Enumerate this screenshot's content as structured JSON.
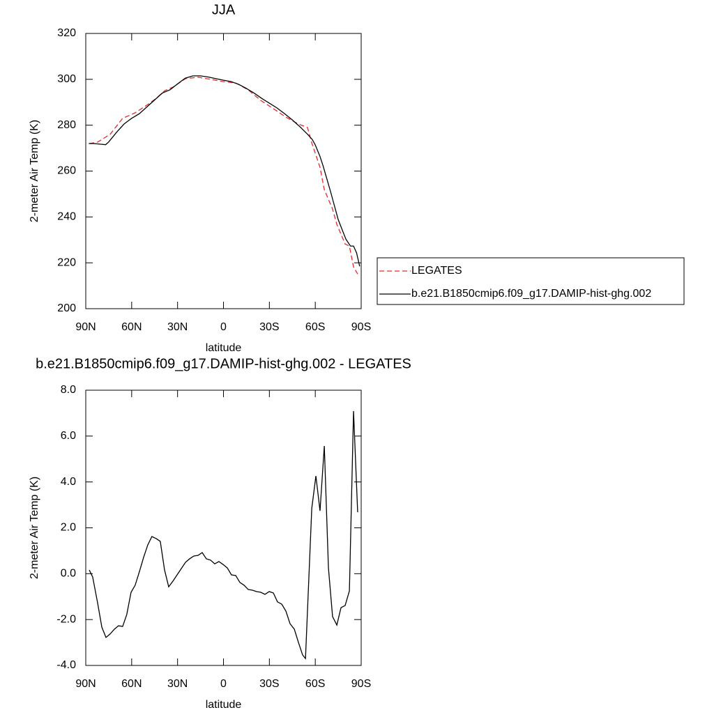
{
  "chart_data": [
    {
      "type": "line",
      "title": "JJA",
      "xlabel": "latitude",
      "ylabel": "2-meter Air Temp (K)",
      "xlim": [
        90,
        -90
      ],
      "xticks": [
        {
          "value": 90,
          "label": "90N"
        },
        {
          "value": 60,
          "label": "60N"
        },
        {
          "value": 30,
          "label": "30N"
        },
        0,
        {
          "value": -30,
          "label": "30S"
        },
        {
          "value": -60,
          "label": "60S"
        },
        {
          "value": -90,
          "label": "90S"
        }
      ],
      "ylim": [
        200,
        320
      ],
      "yticks": [
        200,
        220,
        240,
        260,
        280,
        300,
        320
      ],
      "legend": "right",
      "series": [
        {
          "name": "LEGATES",
          "color": "#e8262a",
          "dashed": true,
          "x": [
            87.7,
            82.3,
            74.1,
            65.9,
            57.7,
            49.5,
            44,
            38.5,
            33,
            24.8,
            16.6,
            8.4,
            0.2,
            -8,
            -16.2,
            -24.4,
            -32.6,
            -40.8,
            -49,
            -54.9,
            -57.7,
            -63.1,
            -65.9,
            -71.3,
            -74.1,
            -79.5,
            -82.3,
            -85,
            -87.7
          ],
          "values": [
            272,
            272.6,
            276,
            283,
            285.4,
            289,
            291.7,
            295,
            296.6,
            300.3,
            300.9,
            300,
            299,
            298.4,
            295.4,
            290.8,
            287.2,
            283.5,
            280.5,
            279,
            272.3,
            261.6,
            251.9,
            243.4,
            236.7,
            228.2,
            227.3,
            218.2,
            215.1
          ]
        },
        {
          "name": "b.e21.B1850cmip6.f09_g17.DAMIP-hist-ghg.002",
          "color": "#000000",
          "dashed": false,
          "x": [
            88,
            85,
            80,
            77,
            75,
            70,
            65,
            60,
            55,
            50,
            45,
            40,
            35,
            30,
            25,
            20,
            15,
            10,
            5,
            0,
            -5,
            -10,
            -15,
            -20,
            -25,
            -30,
            -35,
            -40,
            -45,
            -50,
            -55,
            -58,
            -60,
            -63,
            -65,
            -70,
            -75,
            -80,
            -83,
            -85,
            -87,
            -89
          ],
          "values": [
            272,
            272,
            271.7,
            271.5,
            272.7,
            276.8,
            280.5,
            283,
            285,
            288,
            291,
            294,
            295.4,
            298,
            300.5,
            301.5,
            301.5,
            301,
            300.3,
            299.6,
            299,
            297.8,
            296,
            294,
            291.7,
            289.6,
            287.5,
            285,
            282.3,
            279.3,
            276,
            273.8,
            271.4,
            266.5,
            262.5,
            251,
            238.8,
            230.3,
            227.3,
            227.3,
            224.3,
            218.5
          ]
        }
      ]
    },
    {
      "type": "line",
      "title": "b.e21.B1850cmip6.f09_g17.DAMIP-hist-ghg.002 - LEGATES",
      "xlabel": "latitude",
      "ylabel": "2-meter Air Temp (K)",
      "xlim": [
        90,
        -90
      ],
      "xticks": [
        {
          "value": 90,
          "label": "90N"
        },
        {
          "value": 60,
          "label": "60N"
        },
        {
          "value": 30,
          "label": "30N"
        },
        0,
        {
          "value": -30,
          "label": "30S"
        },
        {
          "value": -60,
          "label": "60S"
        },
        {
          "value": -90,
          "label": "90S"
        }
      ],
      "ylim": [
        -4,
        8
      ],
      "yticks": [
        {
          "value": -4,
          "label": "-4.0"
        },
        {
          "value": -2,
          "label": "-2.0"
        },
        {
          "value": 0,
          "label": "0.0"
        },
        {
          "value": 2,
          "label": "2.0"
        },
        {
          "value": 4,
          "label": "4.0"
        },
        {
          "value": 6,
          "label": "6.0"
        },
        {
          "value": 8,
          "label": "8.0"
        }
      ],
      "series": [
        {
          "color": "#000000",
          "dashed": false,
          "x": [
            87.7,
            85.5,
            82.3,
            79.5,
            76.8,
            74.1,
            71.3,
            68.6,
            65.9,
            63.2,
            60.4,
            57.7,
            54.9,
            52.2,
            49.5,
            46.8,
            44,
            41.3,
            38.5,
            35.8,
            33,
            30.3,
            27.6,
            24.8,
            22.1,
            19.4,
            16.6,
            13.9,
            11.2,
            8.4,
            5.7,
            3,
            0.2,
            -2.5,
            -5.2,
            -8,
            -10.7,
            -13.4,
            -16.2,
            -18.9,
            -21.6,
            -24.4,
            -27.1,
            -29.9,
            -32.6,
            -35.3,
            -38.1,
            -40.8,
            -43.5,
            -46.3,
            -49,
            -51.7,
            -53.6,
            -57.7,
            -60.4,
            -63.1,
            -65.9,
            -68.6,
            -71.3,
            -74.1,
            -76.8,
            -79.5,
            -82.3,
            -85,
            -87.7
          ],
          "values": [
            0.16,
            -0.14,
            -1.26,
            -2.33,
            -2.78,
            -2.63,
            -2.42,
            -2.27,
            -2.3,
            -1.78,
            -0.81,
            -0.5,
            0.1,
            0.71,
            1.25,
            1.62,
            1.53,
            1.41,
            0.16,
            -0.57,
            -0.32,
            -0.05,
            0.22,
            0.5,
            0.65,
            0.77,
            0.8,
            0.92,
            0.65,
            0.59,
            0.43,
            0.53,
            0.4,
            0.25,
            -0.05,
            -0.08,
            -0.38,
            -0.5,
            -0.69,
            -0.72,
            -0.78,
            -0.81,
            -0.9,
            -0.78,
            -0.84,
            -1.23,
            -1.33,
            -1.63,
            -2.18,
            -2.42,
            -3,
            -3.54,
            -3.7,
            2.84,
            4.26,
            2.74,
            5.57,
            0.25,
            -1.87,
            -2.24,
            -1.48,
            -1.39,
            -0.75,
            7.09,
            2.68
          ]
        }
      ]
    }
  ]
}
